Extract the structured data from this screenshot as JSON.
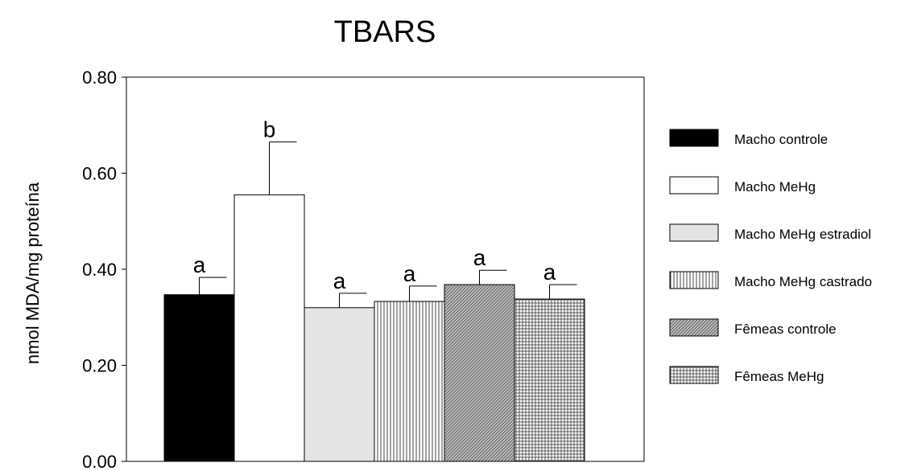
{
  "chart_data": {
    "type": "bar",
    "title": "TBARS",
    "xlabel": "",
    "ylabel": "nmol MDA/mg proteína",
    "ylim": [
      0,
      0.8
    ],
    "yticks": [
      "0.00",
      "0.20",
      "0.40",
      "0.60",
      "0.80"
    ],
    "grid": false,
    "legend_position": "right",
    "categories": [
      "Macho controle",
      "Macho MeHg",
      "Macho MeHg estradiol",
      "Macho MeHg castrado",
      "Fêmeas controle",
      "Fêmeas MeHg"
    ],
    "values": [
      0.347,
      0.555,
      0.32,
      0.333,
      0.368,
      0.338
    ],
    "errors": [
      0.036,
      0.11,
      0.03,
      0.032,
      0.03,
      0.03
    ],
    "significance_labels": [
      "a",
      "b",
      "a",
      "a",
      "a",
      "a"
    ],
    "fills": [
      "solid-black",
      "white",
      "light-gray",
      "vertical-lines",
      "diagonal-hatch",
      "grid-crosshatch"
    ]
  }
}
